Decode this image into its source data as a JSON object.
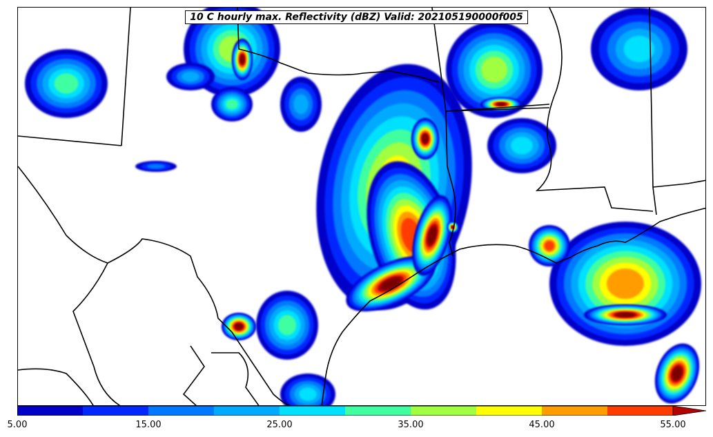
{
  "title": "10 C hourly max. Reflectivity (dBZ) Valid: 202105190000f005",
  "colorbar": {
    "levels": [
      5,
      10,
      15,
      20,
      25,
      30,
      35,
      40,
      45,
      50,
      55
    ],
    "colors": [
      "#0000c8",
      "#0028ff",
      "#0078ff",
      "#00aaff",
      "#00e0ff",
      "#40ffa0",
      "#a0ff40",
      "#ffff00",
      "#ff9c00",
      "#ff3c00",
      "#b40000",
      "#7a0000"
    ],
    "tick_labels": [
      "5.00",
      "15.00",
      "25.00",
      "35.00",
      "45.00",
      "55.00"
    ],
    "extend": "max"
  }
}
